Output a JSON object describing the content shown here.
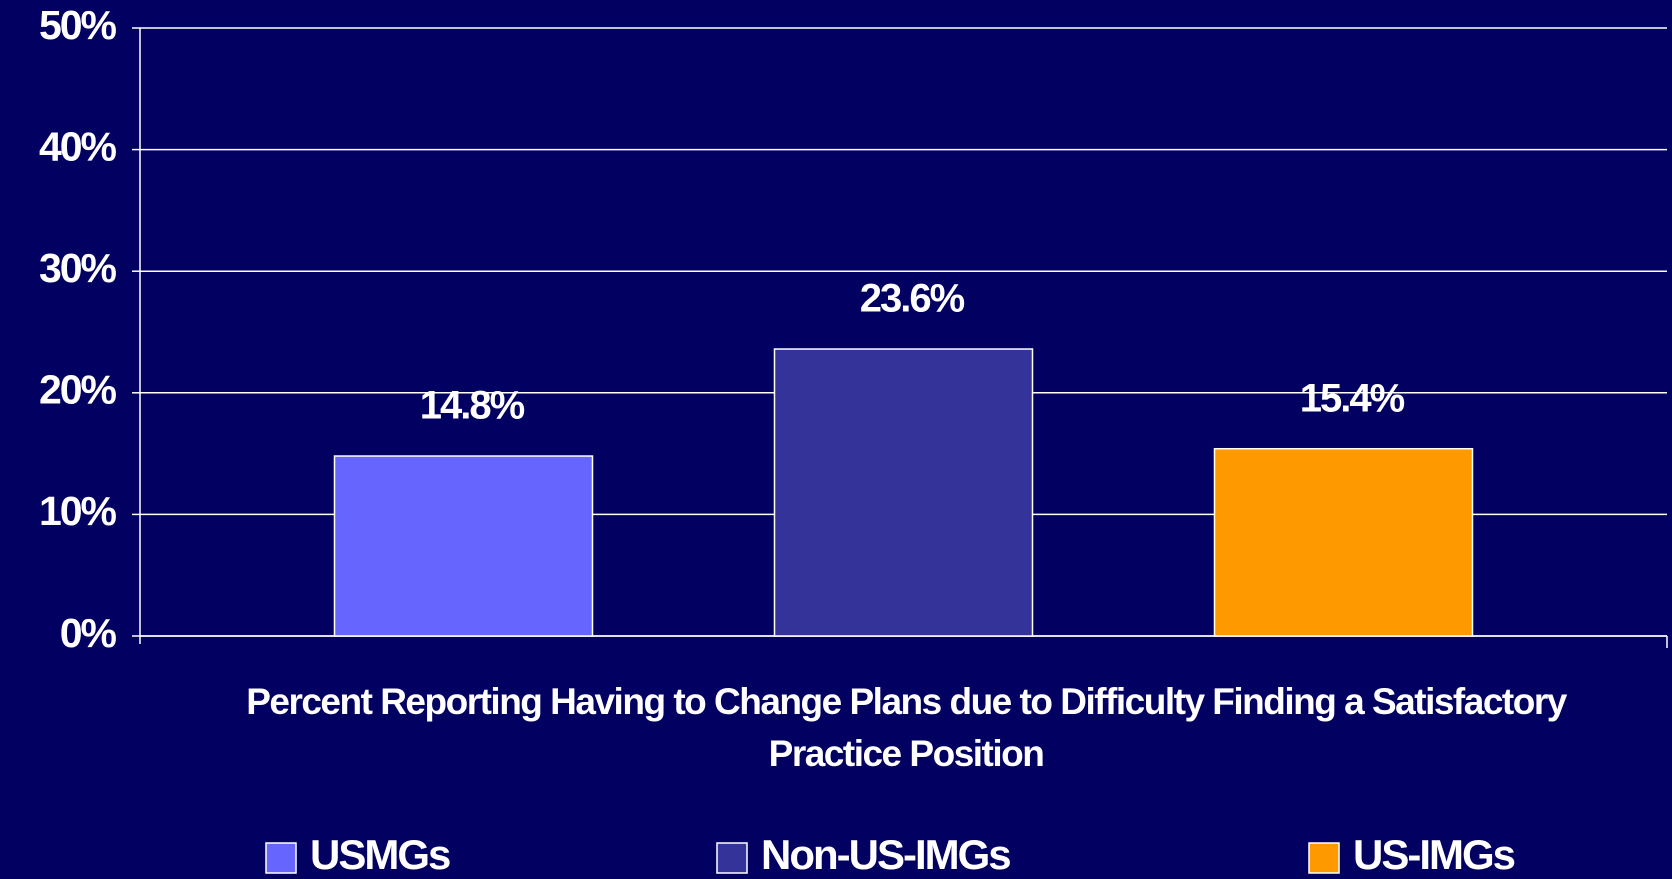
{
  "chart_data": {
    "type": "bar",
    "categories": [
      "Percent Reporting Having to Change Plans due to Difficulty Finding a Satisfactory Practice Position"
    ],
    "series": [
      {
        "name": "USMGs",
        "color": "#6666ff",
        "values": [
          14.8
        ],
        "value_labels": [
          "14.8%"
        ]
      },
      {
        "name": "Non-US-IMGs",
        "color": "#333399",
        "values": [
          23.6
        ],
        "value_labels": [
          "23.6%"
        ]
      },
      {
        "name": "US-IMGs",
        "color": "#ff9900",
        "values": [
          15.4
        ],
        "value_labels": [
          "15.4%"
        ]
      }
    ],
    "ylim": [
      0,
      50
    ],
    "yticks": [
      {
        "value": 0,
        "label": "0%"
      },
      {
        "value": 10,
        "label": "10%"
      },
      {
        "value": 20,
        "label": "20%"
      },
      {
        "value": 30,
        "label": "30%"
      },
      {
        "value": 40,
        "label": "40%"
      },
      {
        "value": 50,
        "label": "50%"
      }
    ],
    "grid": true,
    "legend": "bottom"
  }
}
